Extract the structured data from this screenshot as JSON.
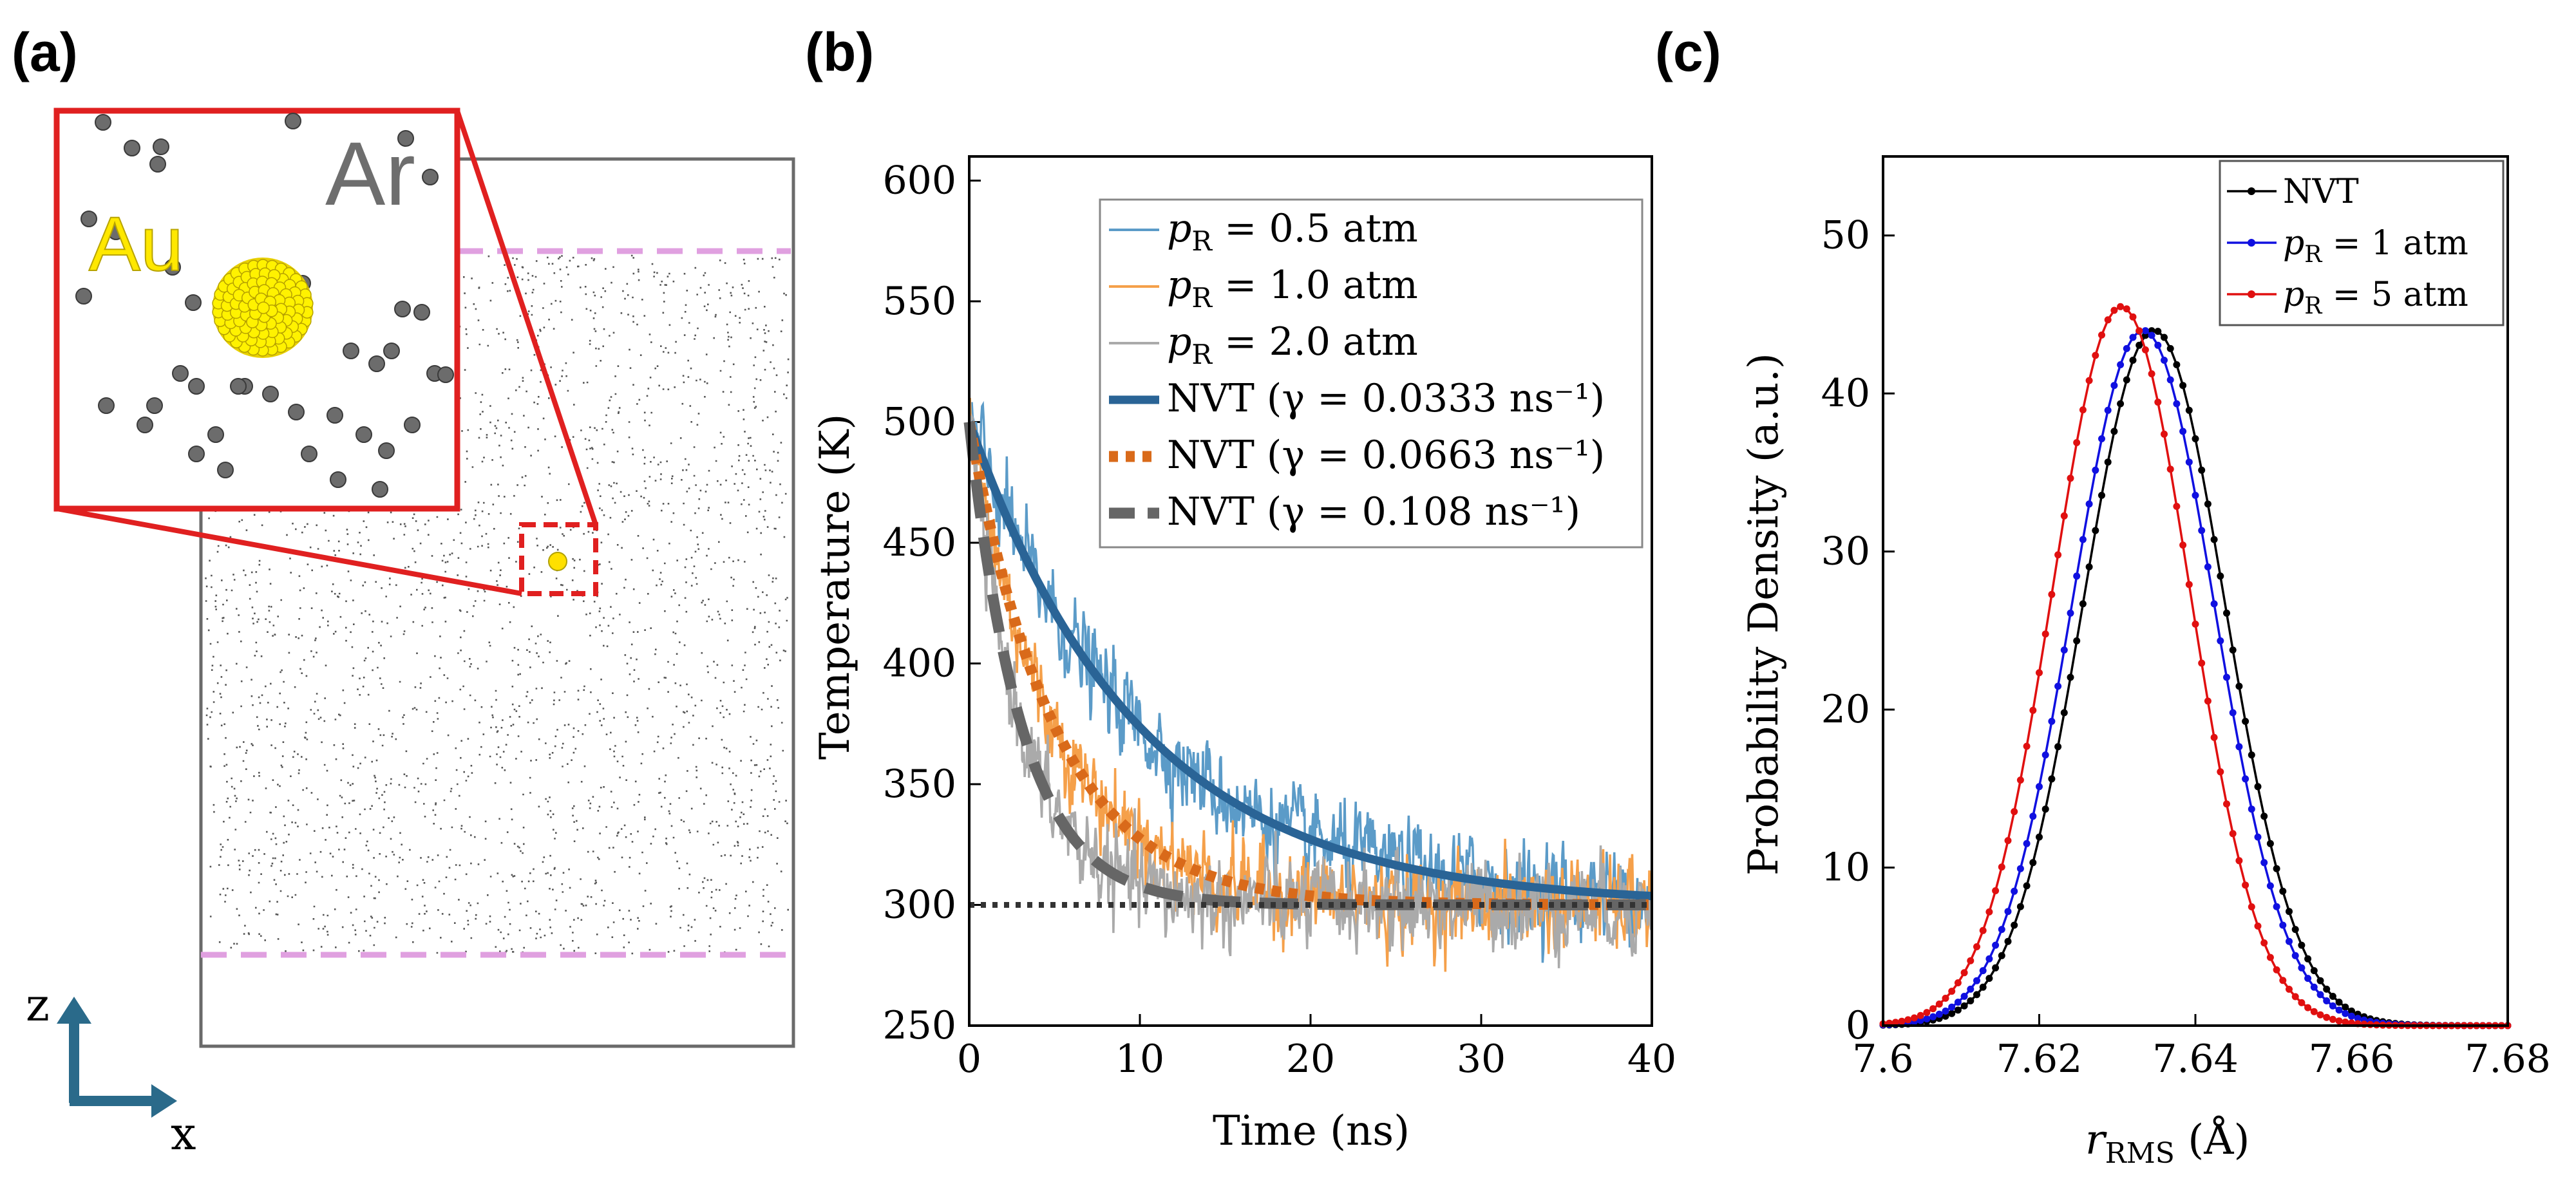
{
  "panel_labels": {
    "a": "(a)",
    "b": "(b)",
    "c": "(c)"
  },
  "panel_a": {
    "inset_labels": {
      "au": "Au",
      "ar": "Ar"
    },
    "axes_labels": {
      "z": "z",
      "x": "x"
    },
    "colors": {
      "box": "#666666",
      "dash": "#e0a0e0",
      "zoom": "#e02020",
      "axes": "#2a6a8a",
      "au": "#ffe000",
      "ar": "#666666"
    }
  },
  "chart_data": [
    {
      "type": "line",
      "panel": "b",
      "xlabel": "Time (ns)",
      "ylabel": "Temperature (K)",
      "xlim": [
        0,
        40
      ],
      "ylim": [
        250,
        610
      ],
      "xticks": [
        0,
        10,
        20,
        30,
        40
      ],
      "yticks": [
        250,
        300,
        350,
        400,
        450,
        500,
        550,
        600
      ],
      "reference_line": {
        "y": 300,
        "style": "dotted",
        "color": "#333333"
      },
      "series": [
        {
          "name": "p_R = 0.5 atm",
          "var": "p",
          "sub": "R",
          "rest": " = 0.5 atm",
          "kind": "noisy",
          "color": "#5b9bc8",
          "T0": 500,
          "Tinf": 300,
          "gamma": 0.0333
        },
        {
          "name": "p_R = 1.0 atm",
          "var": "p",
          "sub": "R",
          "rest": " = 1.0 atm",
          "kind": "noisy",
          "color": "#f5a04a",
          "T0": 500,
          "Tinf": 300,
          "gamma": 0.0663
        },
        {
          "name": "p_R = 2.0 atm",
          "var": "p",
          "sub": "R",
          "rest": " = 2.0 atm",
          "kind": "noisy",
          "color": "#aaaaaa",
          "T0": 500,
          "Tinf": 300,
          "gamma": 0.108
        },
        {
          "name": "NVT (γ = 0.0333 ns⁻¹)",
          "label": "NVT (γ = 0.0333 ns⁻¹)",
          "kind": "fit",
          "style": "solid",
          "color": "#2a6496",
          "T0": 500,
          "Tinf": 300,
          "gamma": 0.0333
        },
        {
          "name": "NVT (γ = 0.0663 ns⁻¹)",
          "label": "NVT (γ = 0.0663 ns⁻¹)",
          "kind": "fit",
          "style": "dotted",
          "color": "#d96a1a",
          "T0": 500,
          "Tinf": 300,
          "gamma": 0.0663
        },
        {
          "name": "NVT (γ = 0.108 ns⁻¹)",
          "label": "NVT (γ = 0.108 ns⁻¹)",
          "kind": "fit",
          "style": "dashed",
          "color": "#666666",
          "T0": 500,
          "Tinf": 300,
          "gamma": 0.108
        }
      ]
    },
    {
      "type": "line",
      "panel": "c",
      "xlabel_var": "r",
      "xlabel_sub": "RMS",
      "xlabel_rest": " (Å)",
      "ylabel": "Probability Density (a.u.)",
      "xlim": [
        7.6,
        7.68
      ],
      "ylim": [
        0,
        55
      ],
      "xticks": [
        "7.6",
        "7.62",
        "7.64",
        "7.66",
        "7.68"
      ],
      "yticks": [
        0,
        10,
        20,
        30,
        40,
        50
      ],
      "series": [
        {
          "name": "NVT",
          "label": "NVT",
          "color": "#000000",
          "mean": 7.6347,
          "sigma": 0.0091,
          "peak": 44.0
        },
        {
          "name": "p_R = 1 atm",
          "var": "p",
          "sub": "R",
          "rest": " = 1 atm",
          "color": "#1010e0",
          "mean": 7.6333,
          "sigma": 0.0091,
          "peak": 44.0
        },
        {
          "name": "p_R = 5 atm",
          "var": "p",
          "sub": "R",
          "rest": " = 5 atm",
          "color": "#e01010",
          "mean": 7.6305,
          "sigma": 0.0088,
          "peak": 45.5
        }
      ]
    }
  ]
}
